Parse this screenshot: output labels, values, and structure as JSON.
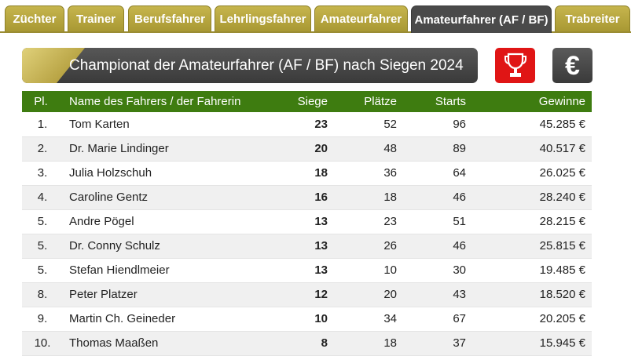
{
  "tabs": [
    {
      "label": "Züchter",
      "active": false
    },
    {
      "label": "Trainer",
      "active": false
    },
    {
      "label": "Berufsfahrer",
      "active": false
    },
    {
      "label": "Lehrlingsfahrer",
      "active": false
    },
    {
      "label": "Amateurfahrer",
      "active": false
    },
    {
      "label": "Amateurfahrer (AF / BF)",
      "active": true
    },
    {
      "label": "Trabreiter",
      "active": false
    }
  ],
  "title": "Championat der Amateurfahrer (AF / BF) nach Siegen 2024",
  "icons": {
    "sort_wins": "trophy-icon",
    "sort_money": "euro-icon",
    "euro_symbol": "€"
  },
  "colors": {
    "tab": "#b8a83f",
    "tab_active": "#4a4a4a",
    "header": "#3e7c10",
    "trophy_bg": "#e01515"
  },
  "table": {
    "headers": {
      "pl": "Pl.",
      "name": "Name des Fahrers / der Fahrerin",
      "siege": "Siege",
      "plaetze": "Plätze",
      "starts": "Starts",
      "gewinne": "Gewinne"
    },
    "rows": [
      {
        "pl": "1.",
        "name": "Tom Karten",
        "siege": "23",
        "plaetze": "52",
        "starts": "96",
        "gewinne": "45.285 €"
      },
      {
        "pl": "2.",
        "name": "Dr. Marie Lindinger",
        "siege": "20",
        "plaetze": "48",
        "starts": "89",
        "gewinne": "40.517 €"
      },
      {
        "pl": "3.",
        "name": "Julia Holzschuh",
        "siege": "18",
        "plaetze": "36",
        "starts": "64",
        "gewinne": "26.025 €"
      },
      {
        "pl": "4.",
        "name": "Caroline Gentz",
        "siege": "16",
        "plaetze": "18",
        "starts": "46",
        "gewinne": "28.240 €"
      },
      {
        "pl": "5.",
        "name": "Andre Pögel",
        "siege": "13",
        "plaetze": "23",
        "starts": "51",
        "gewinne": "28.215 €"
      },
      {
        "pl": "5.",
        "name": "Dr. Conny Schulz",
        "siege": "13",
        "plaetze": "26",
        "starts": "46",
        "gewinne": "25.815 €"
      },
      {
        "pl": "5.",
        "name": "Stefan Hiendlmeier",
        "siege": "13",
        "plaetze": "10",
        "starts": "30",
        "gewinne": "19.485 €"
      },
      {
        "pl": "8.",
        "name": "Peter Platzer",
        "siege": "12",
        "plaetze": "20",
        "starts": "43",
        "gewinne": "18.520 €"
      },
      {
        "pl": "9.",
        "name": "Martin Ch. Geineder",
        "siege": "10",
        "plaetze": "34",
        "starts": "67",
        "gewinne": "20.205 €"
      },
      {
        "pl": "10.",
        "name": "Thomas Maaßen",
        "siege": "8",
        "plaetze": "18",
        "starts": "37",
        "gewinne": "15.945 €"
      }
    ]
  }
}
